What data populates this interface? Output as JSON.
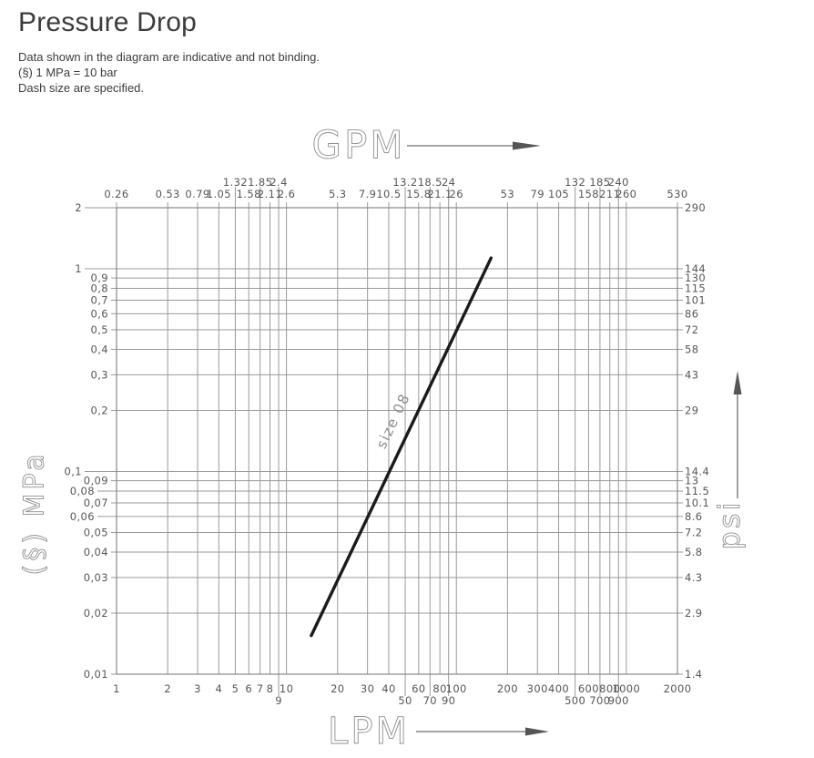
{
  "header": {
    "title": "Pressure Drop",
    "notes": [
      "Data shown in the diagram are indicative and not binding.",
      "(§) 1 MPa = 10 bar",
      "Dash size are specified."
    ]
  },
  "colors": {
    "grid": "#9a9a9a",
    "border": "#8a8a8a",
    "tick_text": "#565656",
    "axis_title": "#8f8f8f",
    "series_line": "#1a1a1a",
    "arrow_line": "#6f6f6f",
    "arrow_head": "#555555",
    "title_text": "#3c3c3c"
  },
  "chart_data": {
    "type": "line",
    "x_scale": "log",
    "y_scale": "log",
    "x_range_lpm": [
      1,
      2000
    ],
    "y_range_mpa": [
      0.01,
      2
    ],
    "grid": true,
    "axes": {
      "bottom": {
        "title": "LPM",
        "ticks": [
          {
            "v": 1,
            "label": "1"
          },
          {
            "v": 2,
            "label": "2"
          },
          {
            "v": 3,
            "label": "3"
          },
          {
            "v": 4,
            "label": "4"
          },
          {
            "v": 5,
            "label": "5"
          },
          {
            "v": 6,
            "label": "6"
          },
          {
            "v": 7,
            "label": "7"
          },
          {
            "v": 8,
            "label": "8"
          },
          {
            "v": 9,
            "label": "9",
            "far": true
          },
          {
            "v": 10,
            "label": "10"
          },
          {
            "v": 20,
            "label": "20"
          },
          {
            "v": 30,
            "label": "30"
          },
          {
            "v": 40,
            "label": "40"
          },
          {
            "v": 50,
            "label": "50",
            "far": true
          },
          {
            "v": 60,
            "label": "60"
          },
          {
            "v": 70,
            "label": "70",
            "far": true
          },
          {
            "v": 80,
            "label": "80"
          },
          {
            "v": 90,
            "label": "90",
            "far": true
          },
          {
            "v": 100,
            "label": "100"
          },
          {
            "v": 200,
            "label": "200"
          },
          {
            "v": 300,
            "label": "300"
          },
          {
            "v": 400,
            "label": "400"
          },
          {
            "v": 500,
            "label": "500",
            "far": true
          },
          {
            "v": 600,
            "label": "600"
          },
          {
            "v": 700,
            "label": "700",
            "far": true
          },
          {
            "v": 800,
            "label": "800"
          },
          {
            "v": 900,
            "label": "900",
            "far": true
          },
          {
            "v": 1000,
            "label": "1000"
          },
          {
            "v": 2000,
            "label": "2000"
          }
        ]
      },
      "top": {
        "title": "GPM",
        "ticks": [
          {
            "v": 1,
            "label": "0.26"
          },
          {
            "v": 2,
            "label": "0.53"
          },
          {
            "v": 3,
            "label": "0.79"
          },
          {
            "v": 4,
            "label": "1.05"
          },
          {
            "v": 5,
            "label": "1.32",
            "far": true
          },
          {
            "v": 6,
            "label": "1.58"
          },
          {
            "v": 7,
            "label": "1.85",
            "far": true
          },
          {
            "v": 8,
            "label": "2.11"
          },
          {
            "v": 9,
            "label": "2.4",
            "far": true
          },
          {
            "v": 10,
            "label": "2.6"
          },
          {
            "v": 20,
            "label": "5.3"
          },
          {
            "v": 30,
            "label": "7.9"
          },
          {
            "v": 40,
            "label": "10.5"
          },
          {
            "v": 50,
            "label": "13.2",
            "far": true
          },
          {
            "v": 60,
            "label": "15.8"
          },
          {
            "v": 70,
            "label": "18.5",
            "far": true
          },
          {
            "v": 80,
            "label": "21.1"
          },
          {
            "v": 90,
            "label": "24",
            "far": true
          },
          {
            "v": 100,
            "label": "26"
          },
          {
            "v": 200,
            "label": "53"
          },
          {
            "v": 300,
            "label": "79"
          },
          {
            "v": 400,
            "label": "105"
          },
          {
            "v": 500,
            "label": "132",
            "far": true
          },
          {
            "v": 600,
            "label": "158"
          },
          {
            "v": 700,
            "label": "185",
            "far": true
          },
          {
            "v": 800,
            "label": "211"
          },
          {
            "v": 900,
            "label": "240",
            "far": true
          },
          {
            "v": 1000,
            "label": "260"
          },
          {
            "v": 2000,
            "label": "530"
          }
        ]
      },
      "left": {
        "title": "(§) MPa",
        "ticks": [
          {
            "v": 2,
            "label": "2",
            "out": 2
          },
          {
            "v": 1,
            "label": "1",
            "out": 2
          },
          {
            "v": 0.9,
            "label": "0,9"
          },
          {
            "v": 0.8,
            "label": "0,8"
          },
          {
            "v": 0.7,
            "label": "0,7"
          },
          {
            "v": 0.6,
            "label": "0,6"
          },
          {
            "v": 0.5,
            "label": "0,5"
          },
          {
            "v": 0.4,
            "label": "0,4"
          },
          {
            "v": 0.3,
            "label": "0,3"
          },
          {
            "v": 0.2,
            "label": "0,2"
          },
          {
            "v": 0.1,
            "label": "0,1",
            "out": 2
          },
          {
            "v": 0.09,
            "label": "0,09"
          },
          {
            "v": 0.08,
            "label": "0,08",
            "out": 1
          },
          {
            "v": 0.07,
            "label": "0,07"
          },
          {
            "v": 0.06,
            "label": "0,06",
            "out": 1
          },
          {
            "v": 0.05,
            "label": "0,05"
          },
          {
            "v": 0.04,
            "label": "0,04"
          },
          {
            "v": 0.03,
            "label": "0,03"
          },
          {
            "v": 0.02,
            "label": "0,02"
          },
          {
            "v": 0.01,
            "label": "0,01"
          }
        ]
      },
      "right": {
        "title": "psi",
        "ticks": [
          {
            "v": 2,
            "label": "290"
          },
          {
            "v": 1,
            "label": "144"
          },
          {
            "v": 0.9,
            "label": "130"
          },
          {
            "v": 0.8,
            "label": "115"
          },
          {
            "v": 0.7,
            "label": "101"
          },
          {
            "v": 0.6,
            "label": "86"
          },
          {
            "v": 0.5,
            "label": "72"
          },
          {
            "v": 0.4,
            "label": "58"
          },
          {
            "v": 0.3,
            "label": "43"
          },
          {
            "v": 0.2,
            "label": "29"
          },
          {
            "v": 0.1,
            "label": "14.4"
          },
          {
            "v": 0.09,
            "label": "13"
          },
          {
            "v": 0.08,
            "label": "11.5"
          },
          {
            "v": 0.07,
            "label": "10.1"
          },
          {
            "v": 0.06,
            "label": "8.6"
          },
          {
            "v": 0.05,
            "label": "7.2"
          },
          {
            "v": 0.04,
            "label": "5.8"
          },
          {
            "v": 0.03,
            "label": "4.3"
          },
          {
            "v": 0.02,
            "label": "2.9"
          },
          {
            "v": 0.01,
            "label": "1.4"
          }
        ]
      }
    },
    "series": [
      {
        "name": "size 08",
        "points_lpm_mpa": [
          [
            14,
            0.0155
          ],
          [
            160,
            1.13
          ]
        ]
      }
    ]
  }
}
